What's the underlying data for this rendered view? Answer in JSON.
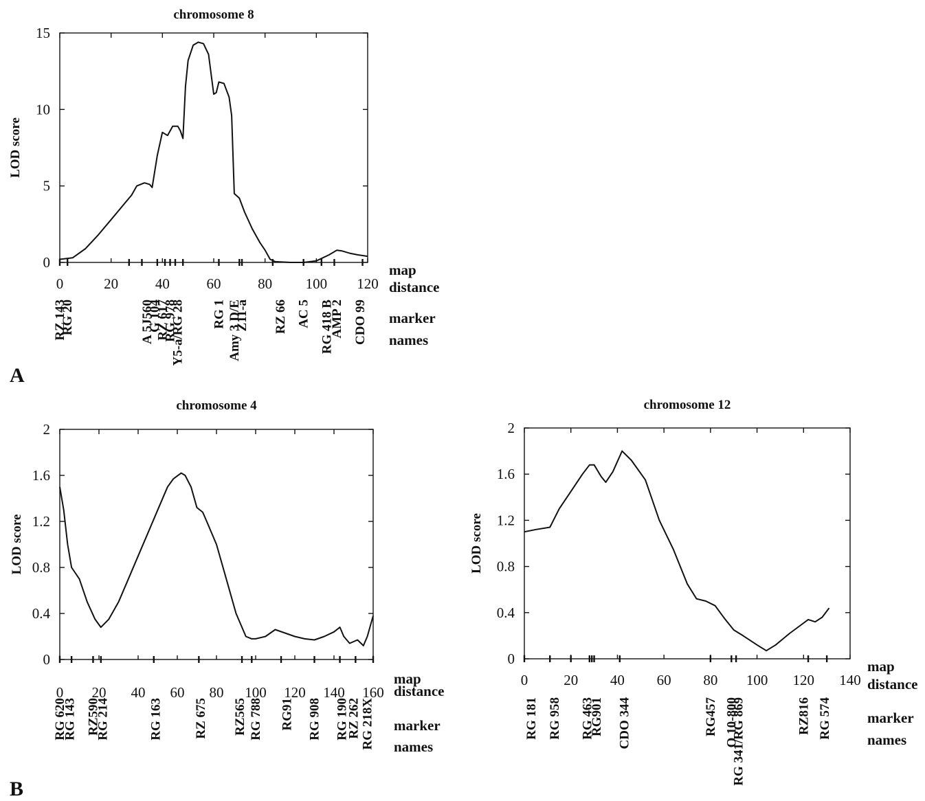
{
  "panel_labels": [
    "A",
    "B"
  ],
  "chart_data": [
    {
      "type": "line",
      "title": "chromosome 8",
      "ylabel": "LOD score",
      "xlabel": [
        "map",
        "distance"
      ],
      "marker_label": [
        "marker",
        "names"
      ],
      "xlim": [
        0,
        120
      ],
      "ylim": [
        0,
        15
      ],
      "xticks": [
        0,
        20,
        40,
        60,
        80,
        100,
        120
      ],
      "yticks": [
        0,
        5,
        10,
        15
      ],
      "marker_positions": [
        0,
        3,
        27,
        32,
        38,
        41,
        43,
        45,
        48,
        62,
        70,
        71,
        83,
        95,
        102,
        107,
        118
      ],
      "markers": [
        {
          "x": 0,
          "name": "RZ 143"
        },
        {
          "x": 3,
          "name": "RG 20"
        },
        {
          "x": 34,
          "name": "A 5J560"
        },
        {
          "x": 37,
          "name": "G 104"
        },
        {
          "x": 40,
          "name": "RZ 617"
        },
        {
          "x": 43,
          "name": "RG 978"
        },
        {
          "x": 46,
          "name": "Y5-a/RG 28"
        },
        {
          "x": 62,
          "name": "RG 1"
        },
        {
          "x": 68,
          "name": "Amy 3 D/E"
        },
        {
          "x": 71,
          "name": "Z11-a"
        },
        {
          "x": 86,
          "name": "RZ 66"
        },
        {
          "x": 95,
          "name": "AC 5"
        },
        {
          "x": 104,
          "name": "RG 418 B"
        },
        {
          "x": 108,
          "name": "AMP 2"
        },
        {
          "x": 117,
          "name": "CDO 99"
        }
      ],
      "x": [
        0,
        5,
        10,
        15,
        20,
        25,
        28,
        30,
        33,
        35,
        36,
        38,
        40,
        42,
        44,
        46,
        47,
        48,
        49,
        50,
        52,
        54,
        56,
        58,
        60,
        61,
        62,
        64,
        66,
        67,
        68,
        70,
        72,
        75,
        78,
        80,
        82,
        84,
        90,
        95,
        100,
        105,
        108,
        110,
        113,
        116,
        120
      ],
      "y": [
        0.2,
        0.3,
        0.9,
        1.8,
        2.8,
        3.8,
        4.4,
        5.0,
        5.2,
        5.1,
        4.9,
        7.0,
        8.5,
        8.3,
        8.9,
        8.9,
        8.6,
        8.1,
        11.5,
        13.2,
        14.2,
        14.4,
        14.3,
        13.6,
        11.0,
        11.1,
        11.8,
        11.7,
        10.8,
        9.6,
        4.5,
        4.2,
        3.3,
        2.2,
        1.3,
        0.8,
        0.2,
        0.05,
        0.0,
        0.0,
        0.1,
        0.5,
        0.8,
        0.75,
        0.6,
        0.5,
        0.4
      ]
    },
    {
      "type": "line",
      "title": "chromosome 4",
      "ylabel": "LOD score",
      "xlabel": [
        "map",
        "distance"
      ],
      "marker_label": [
        "marker",
        "names"
      ],
      "xlim": [
        0,
        160
      ],
      "ylim": [
        0,
        2
      ],
      "xticks": [
        0,
        20,
        40,
        60,
        80,
        100,
        120,
        140,
        160
      ],
      "ytick_labels": [
        "0",
        "0.4",
        "0.8",
        "1.2",
        "1.6",
        "2"
      ],
      "yticks": [
        0,
        0.4,
        0.8,
        1.2,
        1.6,
        2
      ],
      "marker_positions": [
        0,
        6,
        17,
        21,
        48,
        71,
        93,
        98,
        113,
        130,
        143,
        151,
        160
      ],
      "markers": [
        {
          "x": 0,
          "name": "RG 620"
        },
        {
          "x": 5,
          "name": "RG 143"
        },
        {
          "x": 17,
          "name": "RZ590"
        },
        {
          "x": 22,
          "name": "RG 214"
        },
        {
          "x": 49,
          "name": "RG 163"
        },
        {
          "x": 72,
          "name": "RZ 675"
        },
        {
          "x": 92,
          "name": "RZ565"
        },
        {
          "x": 100,
          "name": "RG 788"
        },
        {
          "x": 116,
          "name": "RG91"
        },
        {
          "x": 130,
          "name": "RG 908"
        },
        {
          "x": 144,
          "name": "RG 190"
        },
        {
          "x": 150,
          "name": "RZ 262"
        },
        {
          "x": 157,
          "name": "RG 218X"
        }
      ],
      "x": [
        0,
        2,
        4,
        6,
        10,
        14,
        18,
        21,
        25,
        30,
        35,
        40,
        45,
        50,
        55,
        58,
        62,
        64,
        67,
        70,
        73,
        75,
        80,
        85,
        90,
        95,
        98,
        100,
        105,
        110,
        115,
        120,
        125,
        130,
        135,
        140,
        143,
        145,
        148,
        152,
        155,
        157,
        160
      ],
      "y": [
        1.5,
        1.3,
        1.0,
        0.8,
        0.7,
        0.5,
        0.35,
        0.28,
        0.35,
        0.5,
        0.7,
        0.9,
        1.1,
        1.3,
        1.5,
        1.57,
        1.62,
        1.6,
        1.5,
        1.32,
        1.28,
        1.2,
        1.0,
        0.7,
        0.4,
        0.2,
        0.18,
        0.18,
        0.2,
        0.26,
        0.23,
        0.2,
        0.18,
        0.17,
        0.2,
        0.24,
        0.28,
        0.2,
        0.14,
        0.17,
        0.12,
        0.2,
        0.38
      ]
    },
    {
      "type": "line",
      "title": "chromosome 12",
      "ylabel": "LOD score",
      "xlabel": [
        "map",
        "distance"
      ],
      "marker_label": [
        "marker",
        "names"
      ],
      "xlim": [
        0,
        140
      ],
      "ylim": [
        0,
        2
      ],
      "xticks": [
        0,
        20,
        40,
        60,
        80,
        100,
        120,
        140
      ],
      "ytick_labels": [
        "0",
        "0.4",
        "0.8",
        "1.2",
        "1.6",
        "2"
      ],
      "yticks": [
        0,
        0.4,
        0.8,
        1.2,
        1.6,
        2
      ],
      "marker_positions": [
        0,
        11,
        20,
        28,
        29,
        30,
        41,
        80,
        89,
        91,
        122,
        130
      ],
      "markers": [
        {
          "x": 3,
          "name": "RG 181"
        },
        {
          "x": 13,
          "name": "RG 958"
        },
        {
          "x": 27,
          "name": "RG 463"
        },
        {
          "x": 31,
          "name": "RG901"
        },
        {
          "x": 43,
          "name": "CDO 344"
        },
        {
          "x": 80,
          "name": "RG457"
        },
        {
          "x": 89,
          "name": "O 10-800"
        },
        {
          "x": 92,
          "name": "RG 341/RG 869"
        },
        {
          "x": 120,
          "name": "RZ816"
        },
        {
          "x": 129,
          "name": "RG 574"
        }
      ],
      "x": [
        0,
        5,
        11,
        15,
        20,
        25,
        28,
        30,
        33,
        35,
        38,
        42,
        46,
        52,
        58,
        64,
        70,
        74,
        78,
        82,
        86,
        90,
        94,
        100,
        104,
        108,
        114,
        118,
        122,
        125,
        128,
        131
      ],
      "y": [
        1.1,
        1.12,
        1.14,
        1.3,
        1.45,
        1.6,
        1.68,
        1.68,
        1.58,
        1.53,
        1.62,
        1.8,
        1.72,
        1.55,
        1.2,
        0.95,
        0.65,
        0.52,
        0.5,
        0.46,
        0.35,
        0.25,
        0.2,
        0.12,
        0.07,
        0.12,
        0.22,
        0.28,
        0.34,
        0.32,
        0.36,
        0.44
      ]
    }
  ]
}
